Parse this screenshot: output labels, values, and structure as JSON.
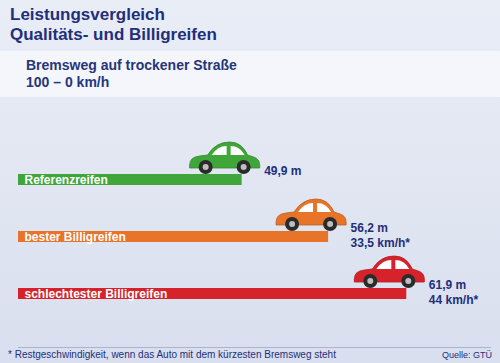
{
  "chart_data": {
    "type": "bar",
    "orientation": "horizontal",
    "title": [
      "Leistungsvergleich",
      "Qualitäts- und Billigreifen"
    ],
    "subtitle": [
      "Bremsweg auf trockener Straße",
      "100 – 0 km/h"
    ],
    "categories": [
      "Referenzreifen",
      "bester Billigreifen",
      "schlechtester Billigreifen"
    ],
    "values": [
      49.9,
      56.2,
      61.9
    ],
    "value_labels": [
      "49,9 m",
      "56,2 m",
      "61,9 m"
    ],
    "residual_speed": [
      null,
      33.5,
      44
    ],
    "residual_speed_labels": [
      null,
      "33,5 km/h*",
      "44 km/h*"
    ],
    "colors": [
      "#3fa63a",
      "#e8742a",
      "#d6232b"
    ],
    "xlim": [
      33.6,
      68
    ],
    "xticks": [],
    "tick_labels": false,
    "grid": false,
    "data_labels": true,
    "footnote": "* Restgeschwindigkeit, wenn das Auto mit dem kürzesten Bremsweg steht",
    "source": "Quelle: GTÜ"
  }
}
